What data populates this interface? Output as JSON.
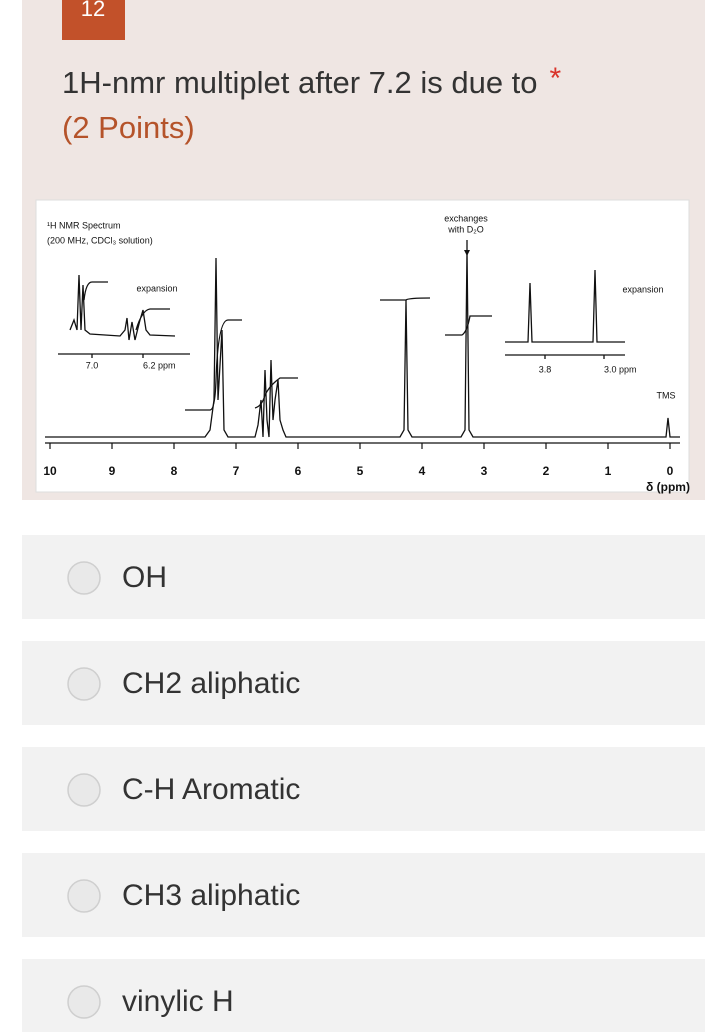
{
  "question": {
    "number": "12",
    "text": "1H-nmr multiplet after 7.2 is due to",
    "required_mark": "*",
    "points": "(2 Points)"
  },
  "spectrum": {
    "title": "¹H NMR Spectrum",
    "conditions": "(200 MHz, CDCl₃ solution)",
    "left_expansion": {
      "label": "expansion",
      "ticks": [
        "7.0",
        "6.2 ppm"
      ]
    },
    "right_expansion": {
      "label": "expansion",
      "ticks": [
        "3.8",
        "3.0 ppm"
      ]
    },
    "annotation": [
      "exchanges",
      "with D₂O"
    ],
    "tms": "TMS",
    "axis_ticks": [
      10,
      9,
      8,
      7,
      6,
      5,
      4,
      3,
      2,
      1,
      0
    ],
    "axis_label": "δ (ppm)"
  },
  "options": [
    "OH",
    "CH2 aliphatic",
    "C-H Aromatic",
    "CH3 aliphatic",
    "vinylic H"
  ]
}
